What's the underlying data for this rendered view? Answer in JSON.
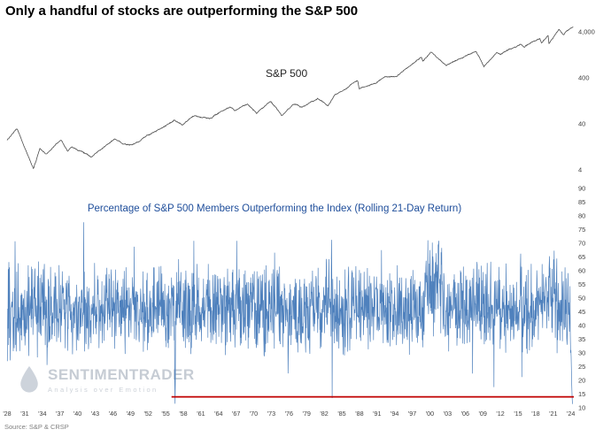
{
  "title": "Only a handful of stocks are outperforming the S&P 500",
  "source": "Source: S&P & CRSP",
  "watermark": {
    "brand": "SENTIMENTRADER",
    "tagline": "Analysis over Emotion"
  },
  "colors": {
    "sp500_line": "#4d4d4d",
    "pct_line": "#4f81bd",
    "reference_line": "#C00000",
    "panel2_title": "#1F4E9B",
    "watermark": "#c6ccd4",
    "tick_text": "#404040"
  },
  "x_axis": {
    "start_year": 1928,
    "end_year": 2024,
    "tick_step_years": 3,
    "ticks": [
      "'28",
      "'31",
      "'34",
      "'37",
      "'40",
      "'43",
      "'46",
      "'49",
      "'52",
      "'55",
      "'58",
      "'61",
      "'64",
      "'67",
      "'70",
      "'73",
      "'76",
      "'79",
      "'82",
      "'85",
      "'88",
      "'91",
      "'94",
      "'97",
      "'00",
      "'03",
      "'06",
      "'09",
      "'12",
      "'15",
      "'18",
      "'21",
      "'24"
    ]
  },
  "chart_data": [
    {
      "type": "line",
      "title": "S&P 500",
      "yscale": "log",
      "grid": false,
      "legend_position": "none",
      "x_range": [
        1928,
        2024.5
      ],
      "yticks_right": [
        {
          "label": "4,000",
          "value": 4000
        },
        {
          "label": "400",
          "value": 400
        },
        {
          "label": "40",
          "value": 40
        },
        {
          "label": "4",
          "value": 4
        }
      ],
      "series": [
        {
          "name": "S&P 500",
          "x": [
            1928,
            1929.7,
            1932.5,
            1933.6,
            1934.6,
            1937.2,
            1938.3,
            1939.0,
            1942.3,
            1946.3,
            1947.5,
            1949.5,
            1952.5,
            1956.5,
            1957.8,
            1959.6,
            1962.5,
            1965.9,
            1966.8,
            1968.9,
            1970.5,
            1972.9,
            1974.8,
            1976.7,
            1978.2,
            1980.9,
            1982.6,
            1983.8,
            1987.7,
            1987.95,
            1990.8,
            1992.0,
            1994.3,
            1996.0,
            1998.55,
            1998.8,
            2000.2,
            2002.75,
            2007.8,
            2009.2,
            2011.4,
            2012.0,
            2013.5,
            2015.4,
            2016.1,
            2018.7,
            2019.0,
            2020.15,
            2020.25,
            2021.97,
            2022.75,
            2023.6,
            2024.4
          ],
          "values": [
            17.7,
            31.9,
            4.4,
            11.8,
            9.0,
            18.7,
            10.5,
            13.2,
            7.5,
            19.3,
            14.8,
            13.9,
            24.5,
            49.7,
            39.0,
            59.9,
            52.3,
            94.1,
            73.2,
            108.4,
            69.3,
            119.9,
            62.3,
            107.8,
            89.0,
            140.5,
            102.4,
            172.7,
            336.8,
            223.9,
            295.5,
            417.1,
            445.8,
            670.6,
            1186.8,
            959.4,
            1527.5,
            776.8,
            1565.2,
            676.5,
            1363.6,
            1257.6,
            1725.5,
            2130.8,
            1829.1,
            2930.8,
            2351.1,
            3386.2,
            2237.4,
            4796.6,
            3577.0,
            4550.6,
            5250.0
          ]
        }
      ]
    },
    {
      "type": "line",
      "title": "Percentage of S&P 500 Members Outperforming the Index (Rolling 21-Day Return)",
      "yscale": "linear",
      "grid": false,
      "x_range": [
        1928,
        2024.5
      ],
      "ylim": [
        8,
        92
      ],
      "yticks_right": [
        90,
        85,
        80,
        75,
        70,
        65,
        60,
        55,
        50,
        45,
        40,
        35,
        30,
        25,
        20,
        15,
        10
      ],
      "series_stats": {
        "typical_range": [
          30,
          65
        ],
        "median": 46,
        "peaks": [
          {
            "year": 2000.5,
            "value": 80
          },
          {
            "year": 2020.5,
            "value": 75
          }
        ],
        "troughs": [
          {
            "year": 1956.6,
            "value": 11
          },
          {
            "year": 2024.3,
            "value": 12
          }
        ]
      },
      "reference_line": {
        "value": 14,
        "x_start": 1956,
        "x_end": 2024.5,
        "color": "#C00000"
      },
      "render": {
        "point_step_years": 0.05,
        "base": 46,
        "volatility": 11
      }
    }
  ]
}
